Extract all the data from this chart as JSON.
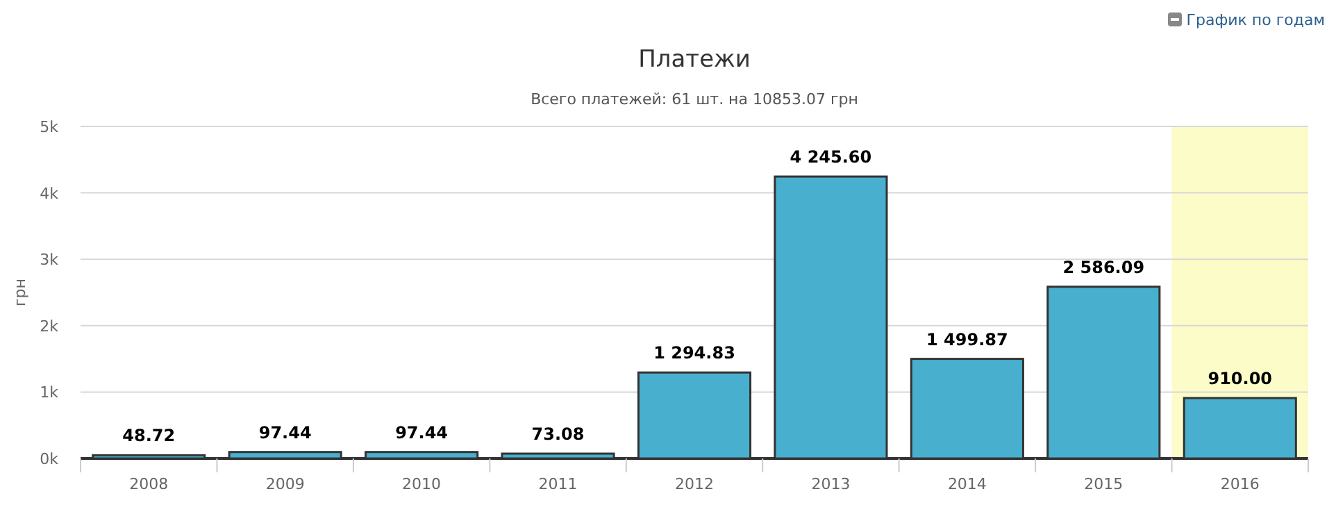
{
  "chart_data": {
    "type": "bar",
    "title": "Платежи",
    "subtitle": "Всего платежей: 61 шт. на 10853.07 грн",
    "ylabel": "грн",
    "annotations": [
      "График по годам"
    ],
    "categories": [
      "2008",
      "2009",
      "2010",
      "2011",
      "2012",
      "2013",
      "2014",
      "2015",
      "2016"
    ],
    "values": [
      48.72,
      97.44,
      97.44,
      73.08,
      1294.83,
      4245.6,
      1499.87,
      2586.09,
      910.0
    ],
    "value_labels": [
      "48.72",
      "97.44",
      "97.44",
      "73.08",
      "1 294.83",
      "4 245.60",
      "1 499.87",
      "2 586.09",
      "910.00"
    ],
    "color": "#48afcf",
    "ylim": [
      0,
      5000
    ],
    "yticks": [
      {
        "value": 0,
        "label": "0k"
      },
      {
        "value": 1000,
        "label": "1k"
      },
      {
        "value": 2000,
        "label": "2k"
      },
      {
        "value": 3000,
        "label": "3k"
      },
      {
        "value": 4000,
        "label": "4k"
      },
      {
        "value": 5000,
        "label": "5k"
      }
    ],
    "grid": "y",
    "bands": [
      {
        "axis": "x",
        "from": "2016",
        "to": "2016",
        "color": "#fbfcc8"
      }
    ]
  }
}
